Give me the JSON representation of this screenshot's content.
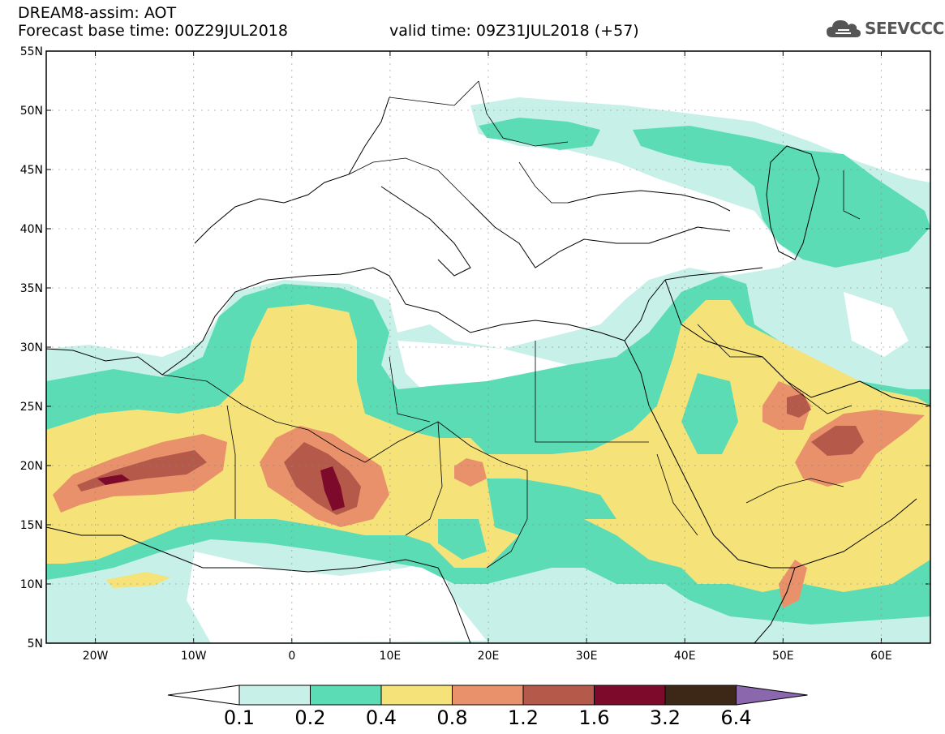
{
  "header": {
    "line1": "DREAM8-assim: AOT",
    "line2": "Forecast base time: 00Z29JUL2018",
    "line3": "valid time: 09Z31JUL2018 (+57)"
  },
  "logo": {
    "text": "SEEVCCC",
    "icon": "cloud-icon"
  },
  "map": {
    "lon_range": [
      -25,
      65
    ],
    "lat_range": [
      5,
      55
    ],
    "lat_ticks": [
      "55N",
      "50N",
      "45N",
      "40N",
      "35N",
      "30N",
      "25N",
      "20N",
      "15N",
      "10N",
      "5N"
    ],
    "lon_ticks": [
      "20W",
      "10W",
      "0",
      "10E",
      "20E",
      "30E",
      "40E",
      "50E",
      "60E"
    ]
  },
  "colorbar": {
    "labels": [
      "0.1",
      "0.2",
      "0.4",
      "0.8",
      "1.2",
      "1.6",
      "3.2",
      "6.4"
    ],
    "colors": [
      "#ffffff",
      "#c6f0e8",
      "#5cdcb4",
      "#f5e37a",
      "#e8916b",
      "#b5594a",
      "#7e0a2b",
      "#3d2817",
      "#8b68ad"
    ]
  }
}
